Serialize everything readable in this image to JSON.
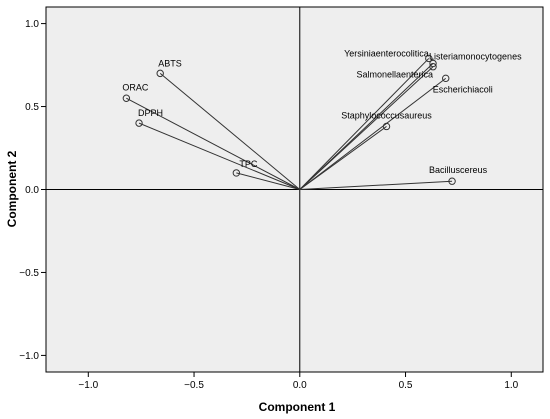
{
  "chart_data": {
    "type": "scatter",
    "title": "",
    "xlabel": "Component   1",
    "ylabel": "Component   2",
    "xlim": [
      -1.2,
      1.15
    ],
    "ylim": [
      -1.1,
      1.1
    ],
    "xticks": [
      -1.0,
      -0.5,
      0.0,
      0.5,
      1.0
    ],
    "yticks": [
      -1.0,
      -0.5,
      0.0,
      0.5,
      1.0
    ],
    "xtick_labels": [
      "−1.0",
      "−0.5",
      "0.0",
      "0.5",
      "1.0"
    ],
    "ytick_labels": [
      "−1.0",
      "−0.5",
      "0.0",
      "0.5",
      "1.0"
    ],
    "grid": false,
    "vectors_from_origin": true,
    "reference_lines": [
      0,
      0
    ],
    "colors": {
      "plot_background": "#eeeeee",
      "marks": "#333333",
      "frame": "#000000"
    },
    "points": [
      {
        "label": "ABTS",
        "x": -0.66,
        "y": 0.7
      },
      {
        "label": "ORAC",
        "x": -0.82,
        "y": 0.55
      },
      {
        "label": "DPPH",
        "x": -0.76,
        "y": 0.4
      },
      {
        "label": "TPC",
        "x": -0.3,
        "y": 0.1
      },
      {
        "label": "Yersiniaenterocolitica",
        "x": 0.61,
        "y": 0.79
      },
      {
        "label": "Listeriamonocytogenes",
        "x": 0.63,
        "y": 0.76
      },
      {
        "label": "Salmonellaenterica",
        "x": 0.63,
        "y": 0.74
      },
      {
        "label": "Escherichiacoli",
        "x": 0.69,
        "y": 0.67
      },
      {
        "label": "Staphylococcusaureus",
        "x": 0.41,
        "y": 0.38
      },
      {
        "label": "Bacilluscereus",
        "x": 0.72,
        "y": 0.05
      }
    ]
  }
}
